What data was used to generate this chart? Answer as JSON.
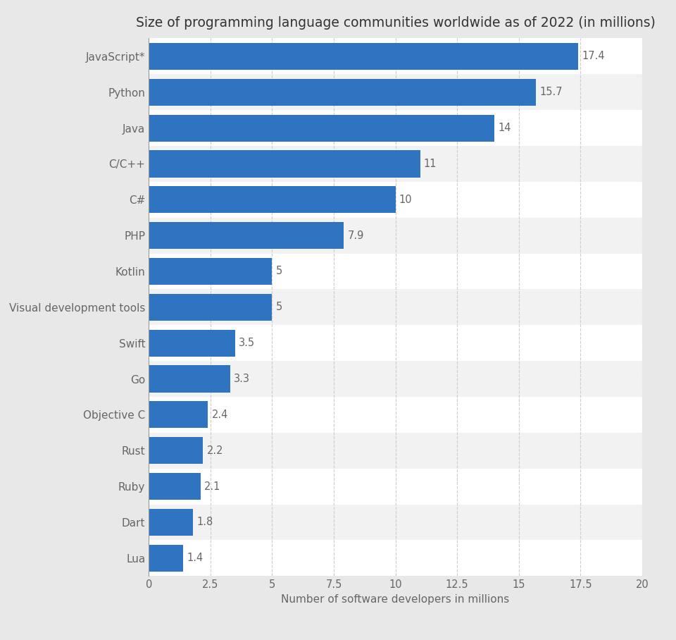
{
  "title": "Size of programming language communities worldwide as of 2022 (in millions)",
  "categories": [
    "JavaScript*",
    "Python",
    "Java",
    "C/C++",
    "C#",
    "PHP",
    "Kotlin",
    "Visual development tools",
    "Swift",
    "Go",
    "Objective C",
    "Rust",
    "Ruby",
    "Dart",
    "Lua"
  ],
  "values": [
    17.4,
    15.7,
    14,
    11,
    10,
    7.9,
    5,
    5,
    3.5,
    3.3,
    2.4,
    2.2,
    2.1,
    1.8,
    1.4
  ],
  "bar_color": "#2e74c0",
  "fig_background_color": "#e8e8e8",
  "row_color_even": "#f2f2f2",
  "row_color_odd": "#ffffff",
  "xlabel": "Number of software developers in millions",
  "xlim": [
    0,
    20
  ],
  "xticks": [
    0,
    2.5,
    5,
    7.5,
    10,
    12.5,
    15,
    17.5,
    20
  ],
  "xtick_labels": [
    "0",
    "2.5",
    "5",
    "7.5",
    "10",
    "12.5",
    "15",
    "17.5",
    "20"
  ],
  "title_fontsize": 13.5,
  "label_fontsize": 11,
  "tick_fontsize": 10.5,
  "value_fontsize": 10.5,
  "grid_color": "#cccccc",
  "bar_height": 0.75
}
